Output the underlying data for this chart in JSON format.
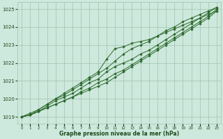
{
  "title": "Graphe pression niveau de la mer (hPa)",
  "x_hours": [
    0,
    1,
    2,
    3,
    4,
    5,
    6,
    7,
    8,
    9,
    10,
    11,
    12,
    13,
    14,
    15,
    16,
    17,
    18,
    19,
    20,
    21,
    22,
    23
  ],
  "series": [
    [
      1019.0,
      1019.1,
      1019.3,
      1019.5,
      1019.7,
      1019.9,
      1020.1,
      1020.3,
      1020.5,
      1020.7,
      1020.9,
      1021.2,
      1021.5,
      1021.8,
      1022.1,
      1022.4,
      1022.7,
      1023.0,
      1023.3,
      1023.6,
      1023.9,
      1024.2,
      1024.5,
      1024.9
    ],
    [
      1019.0,
      1019.1,
      1019.3,
      1019.5,
      1019.7,
      1019.9,
      1020.1,
      1020.4,
      1020.6,
      1020.9,
      1021.1,
      1021.4,
      1021.6,
      1021.9,
      1022.2,
      1022.5,
      1022.8,
      1023.1,
      1023.4,
      1023.7,
      1024.0,
      1024.3,
      1024.6,
      1025.0
    ],
    [
      1019.0,
      1019.1,
      1019.3,
      1019.6,
      1019.9,
      1020.1,
      1020.3,
      1020.6,
      1020.9,
      1021.1,
      1021.5,
      1021.8,
      1022.0,
      1022.2,
      1022.5,
      1022.7,
      1023.0,
      1023.3,
      1023.6,
      1023.9,
      1024.2,
      1024.5,
      1024.8,
      1025.1
    ],
    [
      1019.0,
      1019.2,
      1019.4,
      1019.7,
      1020.0,
      1020.3,
      1020.6,
      1020.9,
      1021.2,
      1021.5,
      1022.2,
      1022.8,
      1022.9,
      1023.1,
      1023.2,
      1023.3,
      1023.5,
      1023.7,
      1023.9,
      1024.1,
      1024.3,
      1024.5,
      1024.7,
      1024.9
    ],
    [
      1019.0,
      1019.1,
      1019.4,
      1019.7,
      1020.0,
      1020.2,
      1020.5,
      1020.8,
      1021.1,
      1021.4,
      1021.7,
      1022.1,
      1022.5,
      1022.8,
      1023.0,
      1023.2,
      1023.5,
      1023.8,
      1024.0,
      1024.3,
      1024.5,
      1024.7,
      1024.9,
      1025.1
    ]
  ],
  "line_color": "#2d6a2d",
  "marker_color": "#2d6a2d",
  "bg_color": "#cde8dc",
  "grid_color": "#9ec4b0",
  "axis_label_color": "#1a4a1a",
  "ylim": [
    1018.6,
    1025.4
  ],
  "yticks": [
    1019,
    1020,
    1021,
    1022,
    1023,
    1024,
    1025
  ],
  "xlim": [
    -0.5,
    23.5
  ],
  "xticks": [
    0,
    1,
    2,
    3,
    4,
    5,
    6,
    7,
    8,
    9,
    10,
    11,
    12,
    13,
    14,
    15,
    16,
    17,
    18,
    19,
    20,
    21,
    22,
    23
  ]
}
